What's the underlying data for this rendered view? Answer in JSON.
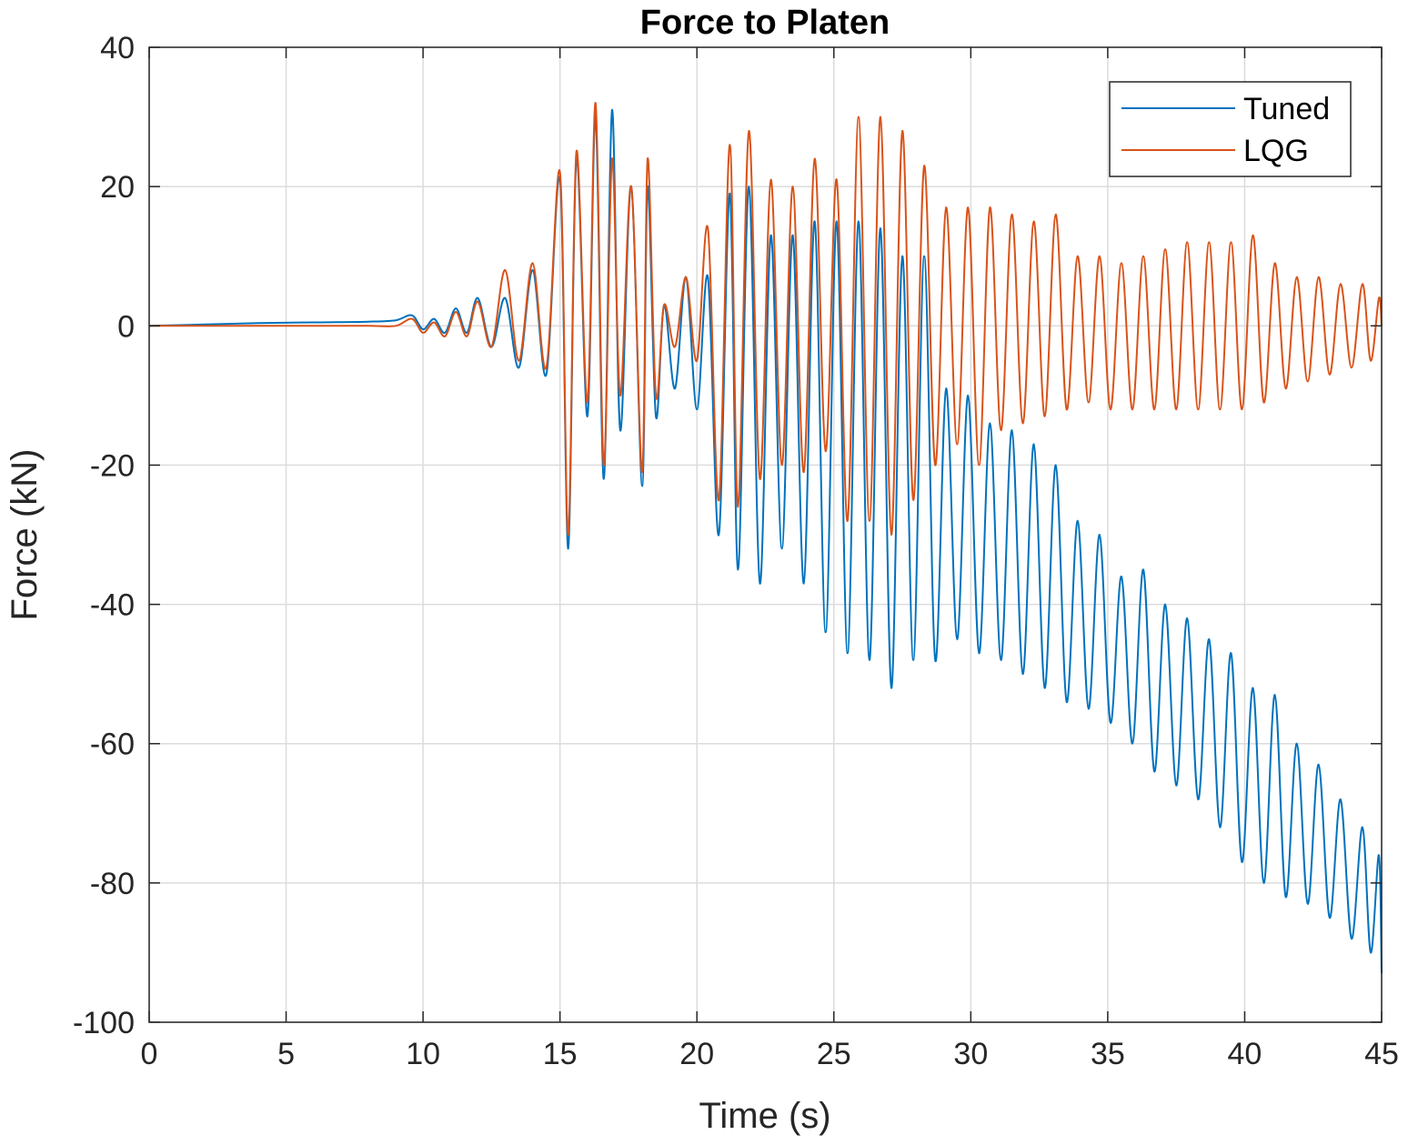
{
  "chart_data": {
    "type": "line",
    "title": "Force to Platen",
    "xlabel": "Time (s)",
    "ylabel": "Force (kN)",
    "xlim": [
      0,
      45
    ],
    "ylim": [
      -100,
      40
    ],
    "xticks": [
      0,
      5,
      10,
      15,
      20,
      25,
      30,
      35,
      40,
      45
    ],
    "yticks": [
      40,
      20,
      0,
      -20,
      -40,
      -60,
      -80,
      -100
    ],
    "xtick_labels": [
      "0",
      "5",
      "10",
      "15",
      "20",
      "25",
      "30",
      "35",
      "40",
      "45"
    ],
    "ytick_labels": [
      "40",
      "20",
      "0",
      "-20",
      "-40",
      "-60",
      "-80",
      "-100"
    ],
    "grid": true,
    "legend_position": "top-right",
    "series": [
      {
        "name": "Tuned",
        "color": "#0072BD",
        "x": [
          0,
          2,
          4,
          6,
          8,
          9,
          9.6,
          10,
          10.4,
          10.8,
          11.2,
          11.6,
          12,
          12.5,
          13,
          13.5,
          14,
          14.5,
          15,
          15.3,
          15.6,
          16,
          16.3,
          16.6,
          16.9,
          17.2,
          17.6,
          18,
          18.2,
          18.5,
          18.8,
          19.2,
          19.6,
          20,
          20.4,
          20.8,
          21.2,
          21.5,
          21.9,
          22.3,
          22.7,
          23.1,
          23.5,
          23.9,
          24.3,
          24.7,
          25.1,
          25.5,
          25.9,
          26.3,
          26.7,
          27.1,
          27.5,
          27.9,
          28.3,
          28.7,
          29.1,
          29.5,
          29.9,
          30.3,
          30.7,
          31.1,
          31.5,
          31.9,
          32.3,
          32.7,
          33.1,
          33.5,
          33.9,
          34.3,
          34.7,
          35.1,
          35.5,
          35.9,
          36.3,
          36.7,
          37.1,
          37.5,
          37.9,
          38.3,
          38.7,
          39.1,
          39.5,
          39.9,
          40.3,
          40.7,
          41.1,
          41.5,
          41.9,
          42.3,
          42.7,
          43.1,
          43.5,
          43.9,
          44.3,
          44.6,
          44.9,
          45
        ],
        "y": [
          0,
          0.2,
          0.4,
          0.5,
          0.6,
          0.8,
          1.5,
          -0.5,
          1,
          -1,
          2.5,
          -1,
          4,
          -3,
          4,
          -6,
          8,
          -7,
          21,
          -32,
          24,
          -13,
          30,
          -22,
          31,
          -15,
          20,
          -23,
          20,
          -13,
          3,
          -9,
          7,
          -12,
          7,
          -30,
          19,
          -35,
          20,
          -37,
          13,
          -32,
          13,
          -37,
          15,
          -44,
          15,
          -47,
          15,
          -48,
          14,
          -52,
          10,
          -48,
          10,
          -48,
          -9,
          -45,
          -10,
          -47,
          -14,
          -48,
          -15,
          -50,
          -17,
          -52,
          -20,
          -54,
          -28,
          -55,
          -30,
          -57,
          -36,
          -60,
          -35,
          -64,
          -40,
          -66,
          -42,
          -68,
          -45,
          -72,
          -47,
          -77,
          -52,
          -80,
          -53,
          -82,
          -60,
          -83,
          -63,
          -85,
          -68,
          -88,
          -72,
          -90,
          -76,
          -93
        ]
      },
      {
        "name": "LQG",
        "color": "#D95319",
        "x": [
          0,
          2,
          4,
          6,
          8,
          9,
          9.6,
          10,
          10.4,
          10.8,
          11.2,
          11.6,
          12,
          12.5,
          13,
          13.5,
          14,
          14.5,
          15,
          15.3,
          15.6,
          16,
          16.3,
          16.6,
          16.9,
          17.2,
          17.6,
          18,
          18.2,
          18.5,
          18.8,
          19.2,
          19.6,
          20,
          20.4,
          20.8,
          21.2,
          21.5,
          21.9,
          22.3,
          22.7,
          23.1,
          23.5,
          23.9,
          24.3,
          24.7,
          25.1,
          25.5,
          25.9,
          26.3,
          26.7,
          27.1,
          27.5,
          27.9,
          28.3,
          28.7,
          29.1,
          29.5,
          29.9,
          30.3,
          30.7,
          31.1,
          31.5,
          31.9,
          32.3,
          32.7,
          33.1,
          33.5,
          33.9,
          34.3,
          34.7,
          35.1,
          35.5,
          35.9,
          36.3,
          36.7,
          37.1,
          37.5,
          37.9,
          38.3,
          38.7,
          39.1,
          39.5,
          39.9,
          40.3,
          40.7,
          41.1,
          41.5,
          41.9,
          42.3,
          42.7,
          43.1,
          43.5,
          43.9,
          44.3,
          44.6,
          44.9,
          45
        ],
        "y": [
          0,
          0,
          0,
          0,
          0,
          0,
          1,
          -1,
          0.5,
          -1.5,
          2,
          -1.5,
          3.5,
          -3,
          8,
          -5,
          9,
          -6,
          22,
          -30,
          25,
          -11,
          32,
          -20,
          24,
          -10,
          20,
          -21,
          24,
          -10,
          3,
          -3,
          7,
          -5,
          14,
          -25,
          26,
          -26,
          28,
          -22,
          21,
          -20,
          20,
          -21,
          24,
          -18,
          21,
          -28,
          30,
          -28,
          30,
          -30,
          28,
          -25,
          23,
          -20,
          17,
          -17,
          17,
          -20,
          17,
          -15,
          16,
          -14,
          15,
          -13,
          16,
          -12,
          10,
          -11,
          10,
          -12,
          9,
          -12,
          10,
          -12,
          11,
          -12,
          12,
          -12,
          12,
          -12,
          12,
          -12,
          13,
          -11,
          9,
          -9,
          7,
          -8,
          7,
          -7,
          6,
          -6,
          6,
          -5,
          4,
          0
        ]
      }
    ]
  }
}
